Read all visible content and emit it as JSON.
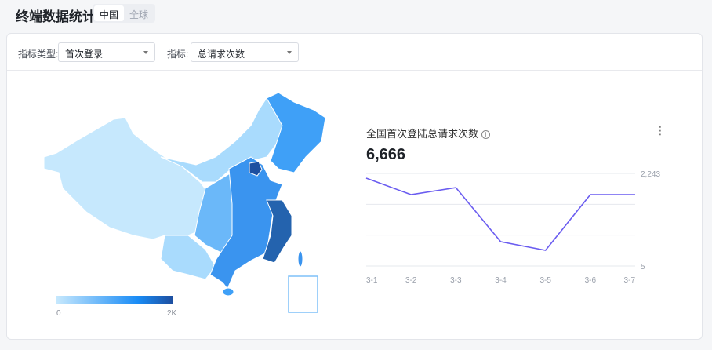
{
  "header": {
    "title": "终端数据统计",
    "scope_tabs": [
      {
        "label": "中国",
        "active": true
      },
      {
        "label": "全球",
        "active": false
      }
    ]
  },
  "filters": {
    "type_label": "指标类型:",
    "type_value": "首次登录",
    "metric_label": "指标:",
    "metric_value": "总请求次数"
  },
  "map": {
    "legend_min": "0",
    "legend_max": "2K",
    "colors": {
      "low": "#c6e8fd",
      "high": "#1d4fa0"
    }
  },
  "chart_panel": {
    "title": "全国首次登陆总请求次数",
    "total": "6,666",
    "line_color": "#6a5cf0"
  },
  "chart_data": {
    "type": "line",
    "categories": [
      "3-1",
      "3-2",
      "3-3",
      "3-4",
      "3-5",
      "3-6",
      "3-7"
    ],
    "values": [
      2129,
      1731,
      1900,
      593,
      384,
      1731,
      1731
    ],
    "ylim": [
      5,
      2243
    ],
    "y_tick_labels": [
      "2,243",
      "5"
    ],
    "grid": true
  }
}
